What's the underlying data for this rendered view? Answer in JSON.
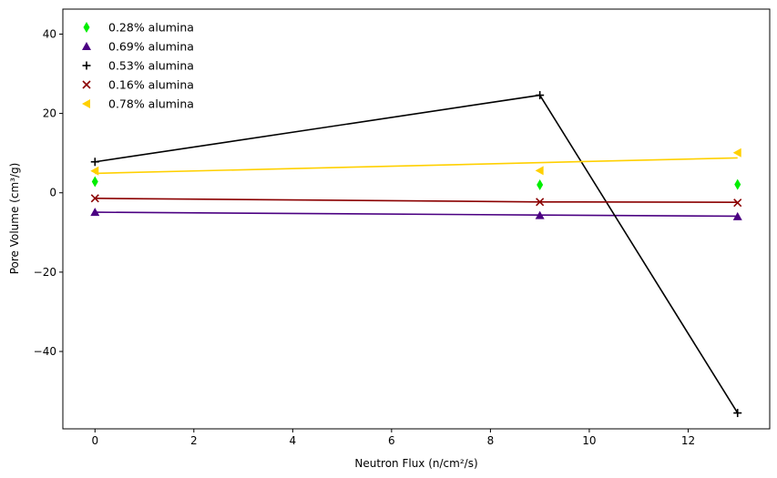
{
  "chart_data": {
    "type": "scatter",
    "title": "",
    "xlabel": "Neutron Flux (n/cm²/s)",
    "ylabel": "Pore Volume (cm³/g)",
    "xlim": [
      -0.65,
      13.65
    ],
    "ylim": [
      -59.5,
      46.3
    ],
    "x_ticks": [
      0,
      2,
      4,
      6,
      8,
      10,
      12
    ],
    "y_ticks": [
      -40,
      -20,
      0,
      20,
      40
    ],
    "grid": false,
    "legend_position": "top-left",
    "series": [
      {
        "name": "0.28% alumina",
        "color": "#00ee00",
        "marker": "thin-diamond",
        "x": [
          0,
          9,
          13
        ],
        "y": [
          2.8,
          2.0,
          2.1
        ],
        "trend_line": false
      },
      {
        "name": "0.69% alumina",
        "color": "#4b0082",
        "marker": "triangle-up",
        "x": [
          0,
          9,
          13
        ],
        "y": [
          -4.9,
          -5.7,
          -6.0
        ],
        "trend_line": true
      },
      {
        "name": "0.53% alumina",
        "color": "#000000",
        "marker": "plus",
        "x": [
          0,
          9,
          13
        ],
        "y": [
          7.8,
          24.6,
          -55.5
        ],
        "trend_line": true
      },
      {
        "name": "0.16% alumina",
        "color": "#8b0000",
        "marker": "x",
        "x": [
          0,
          9,
          13
        ],
        "y": [
          -1.4,
          -2.3,
          -2.5
        ],
        "trend_line": true
      },
      {
        "name": "0.78% alumina",
        "color": "#ffd000",
        "marker": "triangle-left",
        "x": [
          0,
          9,
          13
        ],
        "y": [
          5.5,
          5.6,
          10.1
        ],
        "trend_line": true
      }
    ],
    "trend_lines": [
      {
        "series": "0.69% alumina",
        "color": "#4b0082",
        "x": [
          0,
          9,
          13
        ],
        "y": [
          -4.9,
          -5.6,
          -5.9
        ]
      },
      {
        "series": "0.53% alumina",
        "color": "#000000",
        "x": [
          0,
          9,
          13
        ],
        "y": [
          7.8,
          24.6,
          -55.5
        ]
      },
      {
        "series": "0.16% alumina",
        "color": "#8b0000",
        "x": [
          0,
          9,
          13
        ],
        "y": [
          -1.4,
          -2.3,
          -2.4
        ]
      },
      {
        "series": "0.78% alumina",
        "color": "#ffd000",
        "x": [
          0,
          13
        ],
        "y": [
          4.9,
          8.8
        ]
      }
    ]
  }
}
